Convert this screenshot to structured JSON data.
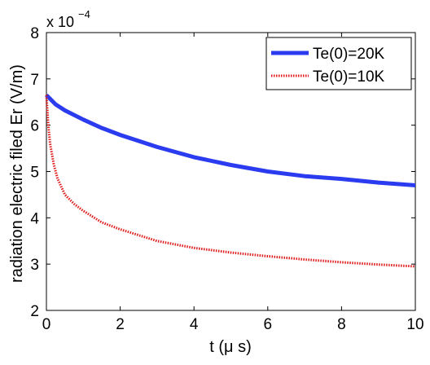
{
  "chart_data": {
    "type": "line",
    "title": "",
    "xlabel": "t (μ s)",
    "ylabel": "radiation electric filed Er (V/m)",
    "y_multiplier_label": "x 10",
    "y_multiplier_exponent": "−4",
    "xlim": [
      0,
      10
    ],
    "ylim": [
      2,
      8
    ],
    "x_ticks": [
      0,
      2,
      4,
      6,
      8,
      10
    ],
    "y_ticks": [
      2,
      3,
      4,
      5,
      6,
      7,
      8
    ],
    "x_tick_labels": [
      "0",
      "2",
      "4",
      "6",
      "8",
      "10"
    ],
    "y_tick_labels": [
      "2",
      "3",
      "4",
      "5",
      "6",
      "7",
      "8"
    ],
    "grid": false,
    "legend_position": "top-right",
    "series": [
      {
        "name": "Te(0)=20K",
        "color": "#2b3cf0",
        "style": "solid",
        "x": [
          0,
          0.25,
          0.5,
          1,
          1.5,
          2,
          3,
          4,
          5,
          6,
          7,
          8,
          9,
          10
        ],
        "y": [
          6.65,
          6.45,
          6.32,
          6.12,
          5.94,
          5.79,
          5.53,
          5.31,
          5.14,
          5.0,
          4.9,
          4.84,
          4.76,
          4.7
        ]
      },
      {
        "name": "Te(0)=10K",
        "color": "#e01a1a",
        "style": "dotted",
        "x": [
          0,
          0.05,
          0.1,
          0.2,
          0.3,
          0.5,
          0.75,
          1,
          1.5,
          2,
          3,
          4,
          5,
          6,
          7,
          8,
          9,
          10
        ],
        "y": [
          6.65,
          6.0,
          5.6,
          5.15,
          4.85,
          4.5,
          4.3,
          4.15,
          3.9,
          3.75,
          3.5,
          3.35,
          3.25,
          3.17,
          3.1,
          3.04,
          2.99,
          2.95
        ]
      }
    ]
  }
}
